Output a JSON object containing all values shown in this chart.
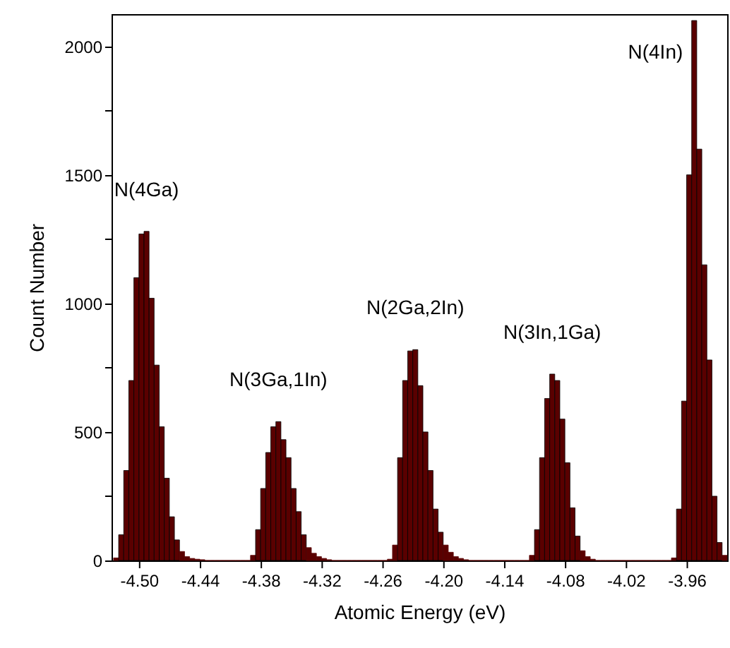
{
  "chart_data": {
    "type": "histogram",
    "xlabel": "Atomic Energy (eV)",
    "ylabel": "Count Number",
    "color": "#5a0000",
    "bins": [
      -4.525,
      -4.52,
      -4.515,
      -4.51,
      -4.505,
      -4.5,
      -4.495,
      -4.49,
      -4.485,
      -4.48,
      -4.475,
      -4.47,
      -4.465,
      -4.46,
      -4.455,
      -4.45,
      -4.445,
      -4.44,
      -4.435,
      -4.43,
      -4.425,
      -4.42,
      -4.415,
      -4.41,
      -4.405,
      -4.4,
      -4.395,
      -4.39,
      -4.385,
      -4.38,
      -4.375,
      -4.37,
      -4.365,
      -4.36,
      -4.355,
      -4.35,
      -4.345,
      -4.34,
      -4.335,
      -4.33,
      -4.325,
      -4.32,
      -4.315,
      -4.31,
      -4.305,
      -4.3,
      -4.295,
      -4.29,
      -4.285,
      -4.28,
      -4.275,
      -4.27,
      -4.265,
      -4.26,
      -4.255,
      -4.25,
      -4.245,
      -4.24,
      -4.235,
      -4.23,
      -4.225,
      -4.22,
      -4.215,
      -4.21,
      -4.205,
      -4.2,
      -4.195,
      -4.19,
      -4.185,
      -4.18,
      -4.175,
      -4.17,
      -4.165,
      -4.16,
      -4.155,
      -4.15,
      -4.145,
      -4.14,
      -4.135,
      -4.13,
      -4.125,
      -4.12,
      -4.115,
      -4.11,
      -4.105,
      -4.1,
      -4.095,
      -4.09,
      -4.085,
      -4.08,
      -4.075,
      -4.07,
      -4.065,
      -4.06,
      -4.055,
      -4.05,
      -4.045,
      -4.04,
      -4.035,
      -4.03,
      -4.025,
      -4.02,
      -4.015,
      -4.01,
      -4.005,
      -4.0,
      -3.995,
      -3.99,
      -3.985,
      -3.98,
      -3.975,
      -3.97,
      -3.965,
      -3.96,
      -3.955,
      -3.95,
      -3.945,
      -3.94,
      -3.935,
      -3.93,
      -3.925,
      -3.92
    ],
    "values": [
      10,
      100,
      350,
      700,
      1100,
      1270,
      1280,
      1020,
      760,
      520,
      320,
      170,
      80,
      35,
      15,
      8,
      5,
      3,
      0,
      0,
      0,
      0,
      0,
      0,
      0,
      0,
      0,
      20,
      120,
      280,
      420,
      520,
      540,
      470,
      400,
      280,
      190,
      100,
      50,
      28,
      15,
      8,
      3,
      0,
      0,
      0,
      0,
      0,
      0,
      0,
      0,
      0,
      0,
      0,
      5,
      60,
      400,
      700,
      815,
      820,
      680,
      500,
      350,
      200,
      110,
      60,
      32,
      15,
      8,
      3,
      0,
      0,
      0,
      0,
      0,
      0,
      0,
      0,
      0,
      0,
      0,
      0,
      20,
      120,
      400,
      630,
      725,
      700,
      550,
      380,
      205,
      95,
      38,
      15,
      5,
      0,
      0,
      0,
      0,
      0,
      0,
      0,
      0,
      0,
      0,
      0,
      0,
      0,
      0,
      0,
      10,
      200,
      620,
      1500,
      2100,
      1600,
      1150,
      780,
      250,
      70,
      20
    ],
    "xlim": [
      -4.527,
      -3.92
    ],
    "ylim": [
      0,
      2125
    ],
    "xticks": [
      {
        "value": -4.5,
        "label": "-4.50"
      },
      {
        "value": -4.44,
        "label": "-4.44"
      },
      {
        "value": -4.38,
        "label": "-4.38"
      },
      {
        "value": -4.32,
        "label": "-4.32"
      },
      {
        "value": -4.26,
        "label": "-4.26"
      },
      {
        "value": -4.2,
        "label": "-4.20"
      },
      {
        "value": -4.14,
        "label": "-4.14"
      },
      {
        "value": -4.08,
        "label": "-4.08"
      },
      {
        "value": -4.02,
        "label": "-4.02"
      },
      {
        "value": -3.96,
        "label": "-3.96"
      }
    ],
    "yticks": [
      0,
      {
        "value": 250,
        "label": null
      },
      500,
      {
        "value": 750,
        "label": null
      },
      1000,
      {
        "value": 1250,
        "label": null
      },
      1500,
      {
        "value": 1750,
        "label": null
      },
      2000
    ],
    "annotations": [
      "N(4Ga)",
      "N(3Ga,1In)",
      "N(2Ga,2In)",
      "N(3In,1Ga)",
      "N(4In)"
    ]
  }
}
